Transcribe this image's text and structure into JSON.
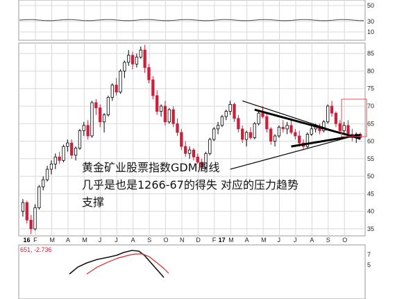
{
  "chart_data": {
    "type": "candlestick",
    "title": "",
    "annotation": [
      "黄金矿业股票指数GDM周线",
      "几乎是也是1266-67的得失  对应的压力趋势",
      "支撑"
    ],
    "y_ticks": [
      "85",
      "80",
      "75",
      "70",
      "65",
      "60",
      "55",
      "50",
      "45",
      "40",
      "35"
    ],
    "top_panel_ticks": [
      "50",
      "30",
      "10"
    ],
    "bottom_panel_ticks": [
      "7",
      "5"
    ],
    "year_labels": [
      {
        "label": "16",
        "before_month_index": 0
      },
      {
        "label": "17",
        "before_month_index": 12
      }
    ],
    "months": [
      "F",
      "M",
      "A",
      "M",
      "J",
      "J",
      "A",
      "S",
      "O",
      "N",
      "D",
      "F",
      "M",
      "A",
      "M",
      "J",
      "J",
      "A",
      "S",
      "O"
    ],
    "indicator_label": "651, -2.736",
    "ylim": [
      33,
      88
    ],
    "candles": [
      [
        40.0,
        43.5,
        38.5,
        42.5
      ],
      [
        42.5,
        43.0,
        36.5,
        37.5
      ],
      [
        37.5,
        39.0,
        33.5,
        35.0
      ],
      [
        35.0,
        42.0,
        34.5,
        41.0
      ],
      [
        41.0,
        47.5,
        40.5,
        47.0
      ],
      [
        47.0,
        50.0,
        46.0,
        49.0
      ],
      [
        49.0,
        53.0,
        48.5,
        52.0
      ],
      [
        52.0,
        54.5,
        50.5,
        53.5
      ],
      [
        53.5,
        56.5,
        52.0,
        55.5
      ],
      [
        55.5,
        57.0,
        53.5,
        54.5
      ],
      [
        54.5,
        59.0,
        54.0,
        58.5
      ],
      [
        58.5,
        60.5,
        57.0,
        59.5
      ],
      [
        59.5,
        60.5,
        55.0,
        56.0
      ],
      [
        56.0,
        58.5,
        54.5,
        58.0
      ],
      [
        58.0,
        63.5,
        57.5,
        63.0
      ],
      [
        63.0,
        65.5,
        61.5,
        64.5
      ],
      [
        64.5,
        66.0,
        60.5,
        61.5
      ],
      [
        61.5,
        71.5,
        61.0,
        71.0
      ],
      [
        71.0,
        72.0,
        67.5,
        69.5
      ],
      [
        69.5,
        70.5,
        64.0,
        65.5
      ],
      [
        65.5,
        68.0,
        62.5,
        67.5
      ],
      [
        67.5,
        73.0,
        67.0,
        72.5
      ],
      [
        72.5,
        76.5,
        71.5,
        76.0
      ],
      [
        76.0,
        78.0,
        73.0,
        74.0
      ],
      [
        74.0,
        80.5,
        73.5,
        80.0
      ],
      [
        80.0,
        83.0,
        78.0,
        82.5
      ],
      [
        82.5,
        86.0,
        81.5,
        84.5
      ],
      [
        84.5,
        85.5,
        80.5,
        82.0
      ],
      [
        82.0,
        85.0,
        81.0,
        84.0
      ],
      [
        84.0,
        87.0,
        83.5,
        86.0
      ],
      [
        86.0,
        87.5,
        79.5,
        81.0
      ],
      [
        81.0,
        82.0,
        76.5,
        77.5
      ],
      [
        77.5,
        78.5,
        72.0,
        73.0
      ],
      [
        73.0,
        74.5,
        67.5,
        68.5
      ],
      [
        68.5,
        70.5,
        67.0,
        70.0
      ],
      [
        70.0,
        71.5,
        64.5,
        65.5
      ],
      [
        65.5,
        69.5,
        65.0,
        69.0
      ],
      [
        69.0,
        70.0,
        64.0,
        65.0
      ],
      [
        65.0,
        66.5,
        61.5,
        62.5
      ],
      [
        62.5,
        63.5,
        57.5,
        58.5
      ],
      [
        58.5,
        60.0,
        55.5,
        56.5
      ],
      [
        56.5,
        58.5,
        55.0,
        57.5
      ],
      [
        57.5,
        58.0,
        54.5,
        55.5
      ],
      [
        55.5,
        56.5,
        53.5,
        54.0
      ],
      [
        54.0,
        55.0,
        51.5,
        52.5
      ],
      [
        52.5,
        57.0,
        52.0,
        56.5
      ],
      [
        56.5,
        61.0,
        56.0,
        60.5
      ],
      [
        60.5,
        64.0,
        60.0,
        63.5
      ],
      [
        63.5,
        65.5,
        62.0,
        64.5
      ],
      [
        64.5,
        67.5,
        64.0,
        67.0
      ],
      [
        67.0,
        69.0,
        66.0,
        68.5
      ],
      [
        68.5,
        71.5,
        67.5,
        70.5
      ],
      [
        70.5,
        71.0,
        65.5,
        66.5
      ],
      [
        66.5,
        67.5,
        62.5,
        63.5
      ],
      [
        63.5,
        64.5,
        59.5,
        60.5
      ],
      [
        60.5,
        63.0,
        58.5,
        62.5
      ],
      [
        62.5,
        64.0,
        60.5,
        61.0
      ],
      [
        61.0,
        65.5,
        60.5,
        65.0
      ],
      [
        65.0,
        68.5,
        64.5,
        68.0
      ],
      [
        68.0,
        70.0,
        66.5,
        67.0
      ],
      [
        67.0,
        68.0,
        62.5,
        63.5
      ],
      [
        63.5,
        64.0,
        59.0,
        60.0
      ],
      [
        60.0,
        62.0,
        58.5,
        61.5
      ],
      [
        61.5,
        64.5,
        61.0,
        64.0
      ],
      [
        64.0,
        66.0,
        62.5,
        63.5
      ],
      [
        63.5,
        65.5,
        62.0,
        64.5
      ],
      [
        64.5,
        66.5,
        62.0,
        62.5
      ],
      [
        62.5,
        63.5,
        60.5,
        61.5
      ],
      [
        61.5,
        63.0,
        58.5,
        59.5
      ],
      [
        59.5,
        60.5,
        57.5,
        58.5
      ],
      [
        58.5,
        62.5,
        58.0,
        62.0
      ],
      [
        62.0,
        64.5,
        61.5,
        63.5
      ],
      [
        63.5,
        65.0,
        62.5,
        64.0
      ],
      [
        64.0,
        65.0,
        62.0,
        63.0
      ],
      [
        63.0,
        66.0,
        62.5,
        65.5
      ],
      [
        65.5,
        70.5,
        65.0,
        70.0
      ],
      [
        70.0,
        71.5,
        67.0,
        68.0
      ],
      [
        68.0,
        68.5,
        64.0,
        65.0
      ],
      [
        65.0,
        66.0,
        62.5,
        63.0
      ],
      [
        63.0,
        65.5,
        62.0,
        64.5
      ],
      [
        64.5,
        66.0,
        61.5,
        62.0
      ],
      [
        62.0,
        63.5,
        60.0,
        61.0
      ],
      [
        61.0,
        62.5,
        59.5,
        62.0
      ],
      [
        62.0,
        62.5,
        60.5,
        61.0
      ]
    ],
    "trendlines": [
      {
        "name": "upper",
        "from": [
          54,
          71.5
        ],
        "to": [
          83,
          60.5
        ]
      },
      {
        "name": "lower",
        "from": [
          51,
          52.0
        ],
        "to": [
          83,
          62.0
        ]
      },
      {
        "name": "upper-thick",
        "from": [
          57,
          69.0
        ],
        "to": [
          83,
          60.8
        ]
      },
      {
        "name": "lower-thick",
        "from": [
          66,
          58.5
        ],
        "to": [
          83,
          61.8
        ]
      }
    ]
  },
  "colors": {
    "up": "#000000",
    "down": "#cc1f3a",
    "grid": "#d8d8d8",
    "box": "#e05050",
    "osc_black": "#111111",
    "osc_red": "#e02020"
  }
}
